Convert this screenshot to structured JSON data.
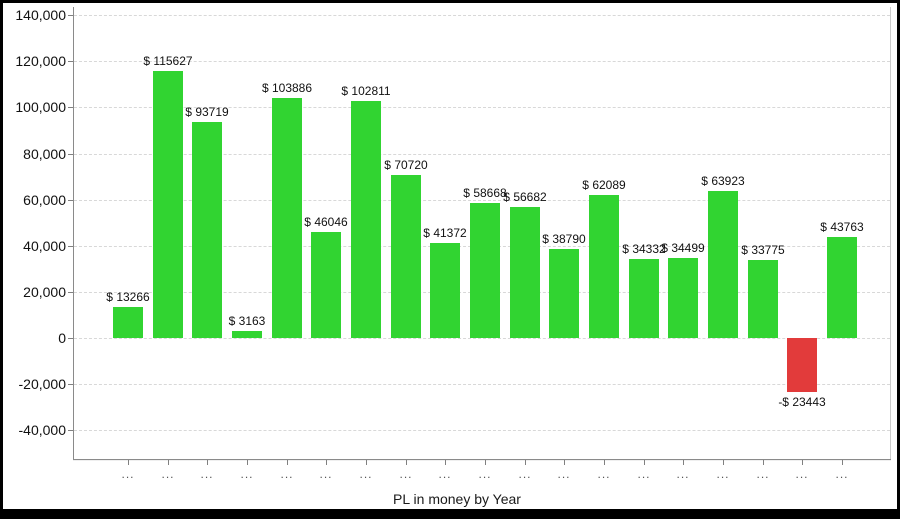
{
  "window": {
    "frame_color": "#000000",
    "background_color": "#ffffff"
  },
  "chart_data": {
    "type": "bar",
    "title": "PL in money by Year",
    "categories": [
      "...",
      "...",
      "...",
      "...",
      "...",
      "...",
      "...",
      "...",
      "...",
      "...",
      "...",
      "...",
      "...",
      "...",
      "...",
      "...",
      "...",
      "...",
      "..."
    ],
    "values": [
      13266,
      115627,
      93719,
      3163,
      103886,
      46046,
      102811,
      70720,
      41372,
      58668,
      56682,
      38790,
      62089,
      34332,
      34499,
      63923,
      33775,
      -23443,
      43763
    ],
    "bar_labels": [
      "$ 13266",
      "$ 115627",
      "$ 93719",
      "$ 3163",
      "$ 103886",
      "$ 46046",
      "$ 102811",
      "$ 70720",
      "$ 41372",
      "$ 58668",
      "$ 56682",
      "$ 38790",
      "$ 62089",
      "$ 34332",
      "$ 34499",
      "$ 63923",
      "$ 33775",
      "-$ 23443",
      "$ 43763"
    ],
    "colors": {
      "positive": "#31d431",
      "negative": "#e23b3b",
      "gridline": "#d8d8d8",
      "axis": "#8a8a8a",
      "label_text": "#111111"
    },
    "y_axis": {
      "ticks": [
        {
          "value": 140000,
          "label": "140,000"
        },
        {
          "value": 120000,
          "label": "120,000"
        },
        {
          "value": 100000,
          "label": "100,000"
        },
        {
          "value": 80000,
          "label": "80,000"
        },
        {
          "value": 60000,
          "label": "60,000"
        },
        {
          "value": 40000,
          "label": "40,000"
        },
        {
          "value": 20000,
          "label": "20,000"
        },
        {
          "value": 0,
          "label": "0"
        },
        {
          "value": -20000,
          "label": "-20,000"
        },
        {
          "value": -40000,
          "label": "-40,000"
        }
      ],
      "range_min": -52500,
      "range_max": 143500
    },
    "grid": {
      "horizontal": true,
      "vertical": false,
      "style": "dashed"
    },
    "legend": {
      "visible": false
    }
  }
}
